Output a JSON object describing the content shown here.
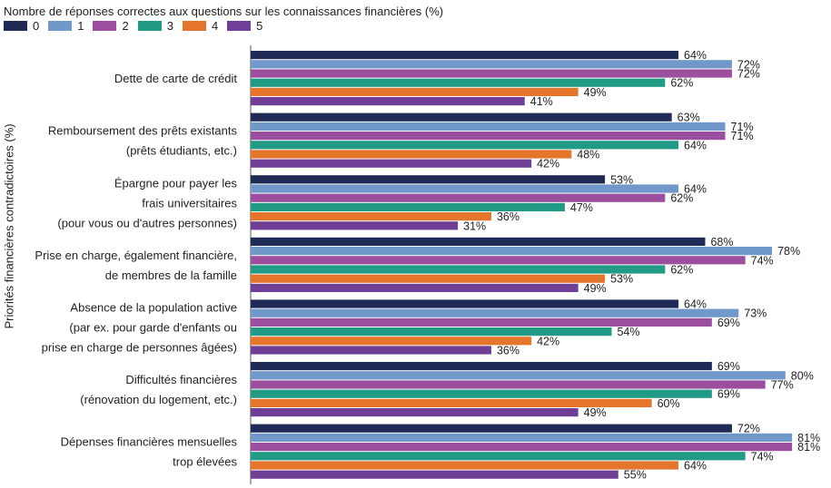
{
  "legend": {
    "title": "Nombre de réponses correctes aux questions sur les connaissances financières (%)"
  },
  "yaxis_title": "Priorités financières contradictoires (%)",
  "chart_data": {
    "type": "bar",
    "orientation": "horizontal",
    "title": "Nombre de réponses correctes aux questions sur les connaissances financières (%)",
    "ylabel": "Priorités financières contradictoires (%)",
    "categories": [
      [
        "Dette de carte de crédit"
      ],
      [
        "Remboursement des prêts existants",
        "(prêts étudiants, etc.)"
      ],
      [
        "Épargne pour payer les",
        "frais universitaires",
        "(pour vous ou d'autres personnes)"
      ],
      [
        "Prise en charge, également financière,",
        "de membres de la famille"
      ],
      [
        "Absence de la population active",
        "(par ex. pour garde d'enfants ou",
        "prise en charge de personnes âgées)"
      ],
      [
        "Difficultés financières",
        "(rénovation du logement, etc.)"
      ],
      [
        "Dépenses financières mensuelles",
        "trop élevées"
      ]
    ],
    "series": [
      {
        "name": "0",
        "color": "#1f2a56",
        "values": [
          64,
          63,
          53,
          68,
          64,
          69,
          72
        ]
      },
      {
        "name": "1",
        "color": "#7098c8",
        "values": [
          72,
          71,
          64,
          78,
          73,
          80,
          81
        ]
      },
      {
        "name": "2",
        "color": "#9b4f9e",
        "values": [
          72,
          71,
          62,
          74,
          69,
          77,
          81
        ]
      },
      {
        "name": "3",
        "color": "#219a86",
        "values": [
          62,
          64,
          47,
          62,
          54,
          69,
          74
        ]
      },
      {
        "name": "4",
        "color": "#e5752a",
        "values": [
          49,
          48,
          36,
          53,
          42,
          60,
          64
        ]
      },
      {
        "name": "5",
        "color": "#6f3f96",
        "values": [
          41,
          42,
          31,
          49,
          36,
          49,
          55
        ]
      }
    ],
    "value_suffix": "%",
    "xlim": [
      0,
      85
    ],
    "grid": false,
    "legend_position": "top-left"
  }
}
